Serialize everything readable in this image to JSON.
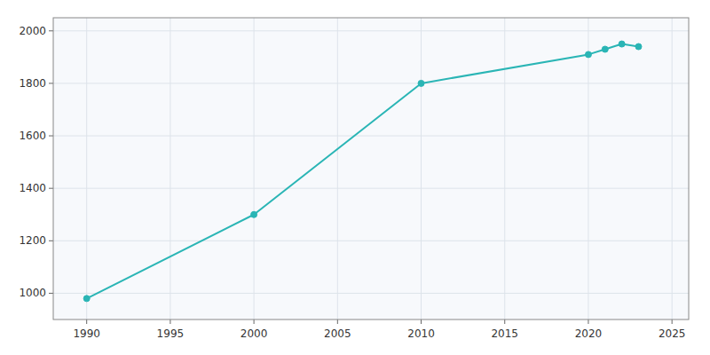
{
  "chart_data": {
    "type": "line",
    "x": [
      1990,
      2000,
      2010,
      2020,
      2021,
      2022,
      2023
    ],
    "values": [
      980,
      1300,
      1800,
      1910,
      1930,
      1950,
      1940
    ],
    "color": "#2ab5b5",
    "marker": "circle",
    "xlim": [
      1988,
      2026
    ],
    "ylim": [
      900,
      2050
    ],
    "xticks": [
      1990,
      1995,
      2000,
      2005,
      2010,
      2015,
      2020,
      2025
    ],
    "yticks": [
      1000,
      1200,
      1400,
      1600,
      1800,
      2000
    ],
    "grid": true
  }
}
